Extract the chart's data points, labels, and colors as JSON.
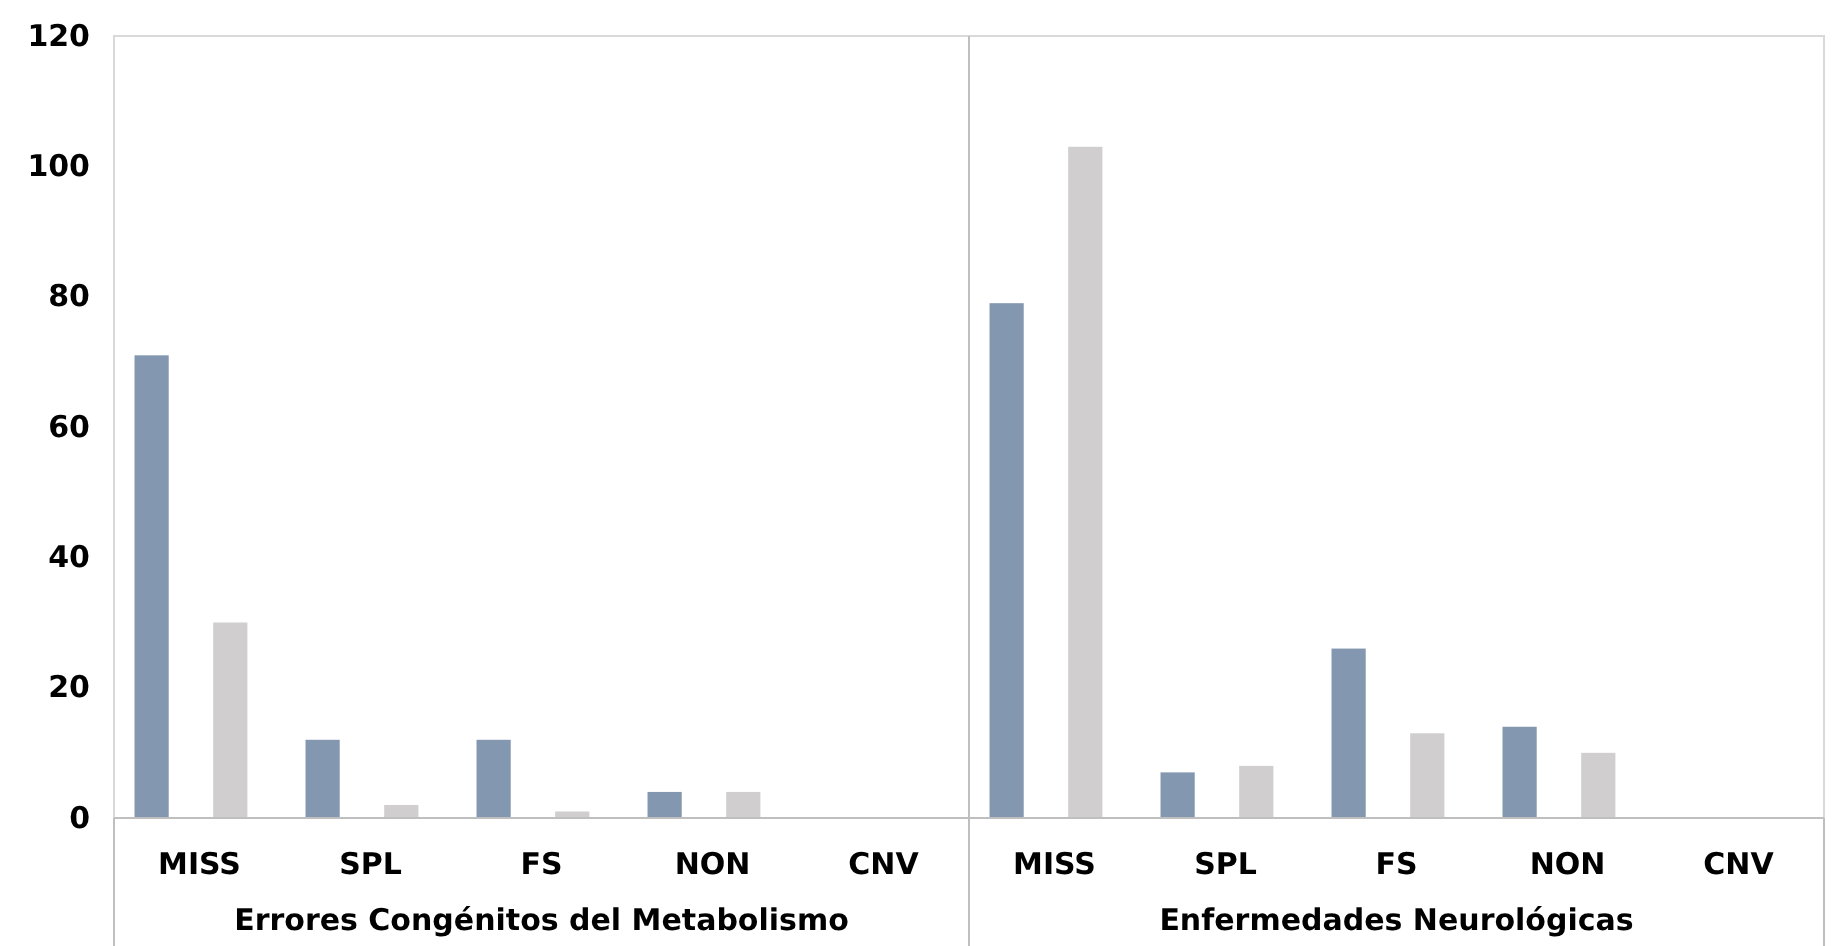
{
  "chart_data": {
    "type": "bar",
    "categories": [
      "MISS",
      "SPL",
      "FS",
      "NON",
      "CNV",
      "MISS",
      "SPL",
      "FS",
      "NON",
      "CNV"
    ],
    "series": [
      {
        "color": "#8497b0",
        "values": [
          71,
          12,
          12,
          4,
          0,
          79,
          7,
          26,
          14,
          0
        ]
      },
      {
        "color": "#d0cece",
        "values": [
          30,
          2,
          1,
          4,
          0,
          103,
          8,
          13,
          10,
          0
        ]
      }
    ],
    "ylim": [
      0,
      120
    ],
    "yticks": [
      0,
      20,
      40,
      60,
      80,
      100,
      120
    ],
    "grid": false,
    "annotations": [
      "Errores Congénitos del Metabolismo",
      "Enfermedades Neurológicas"
    ]
  }
}
